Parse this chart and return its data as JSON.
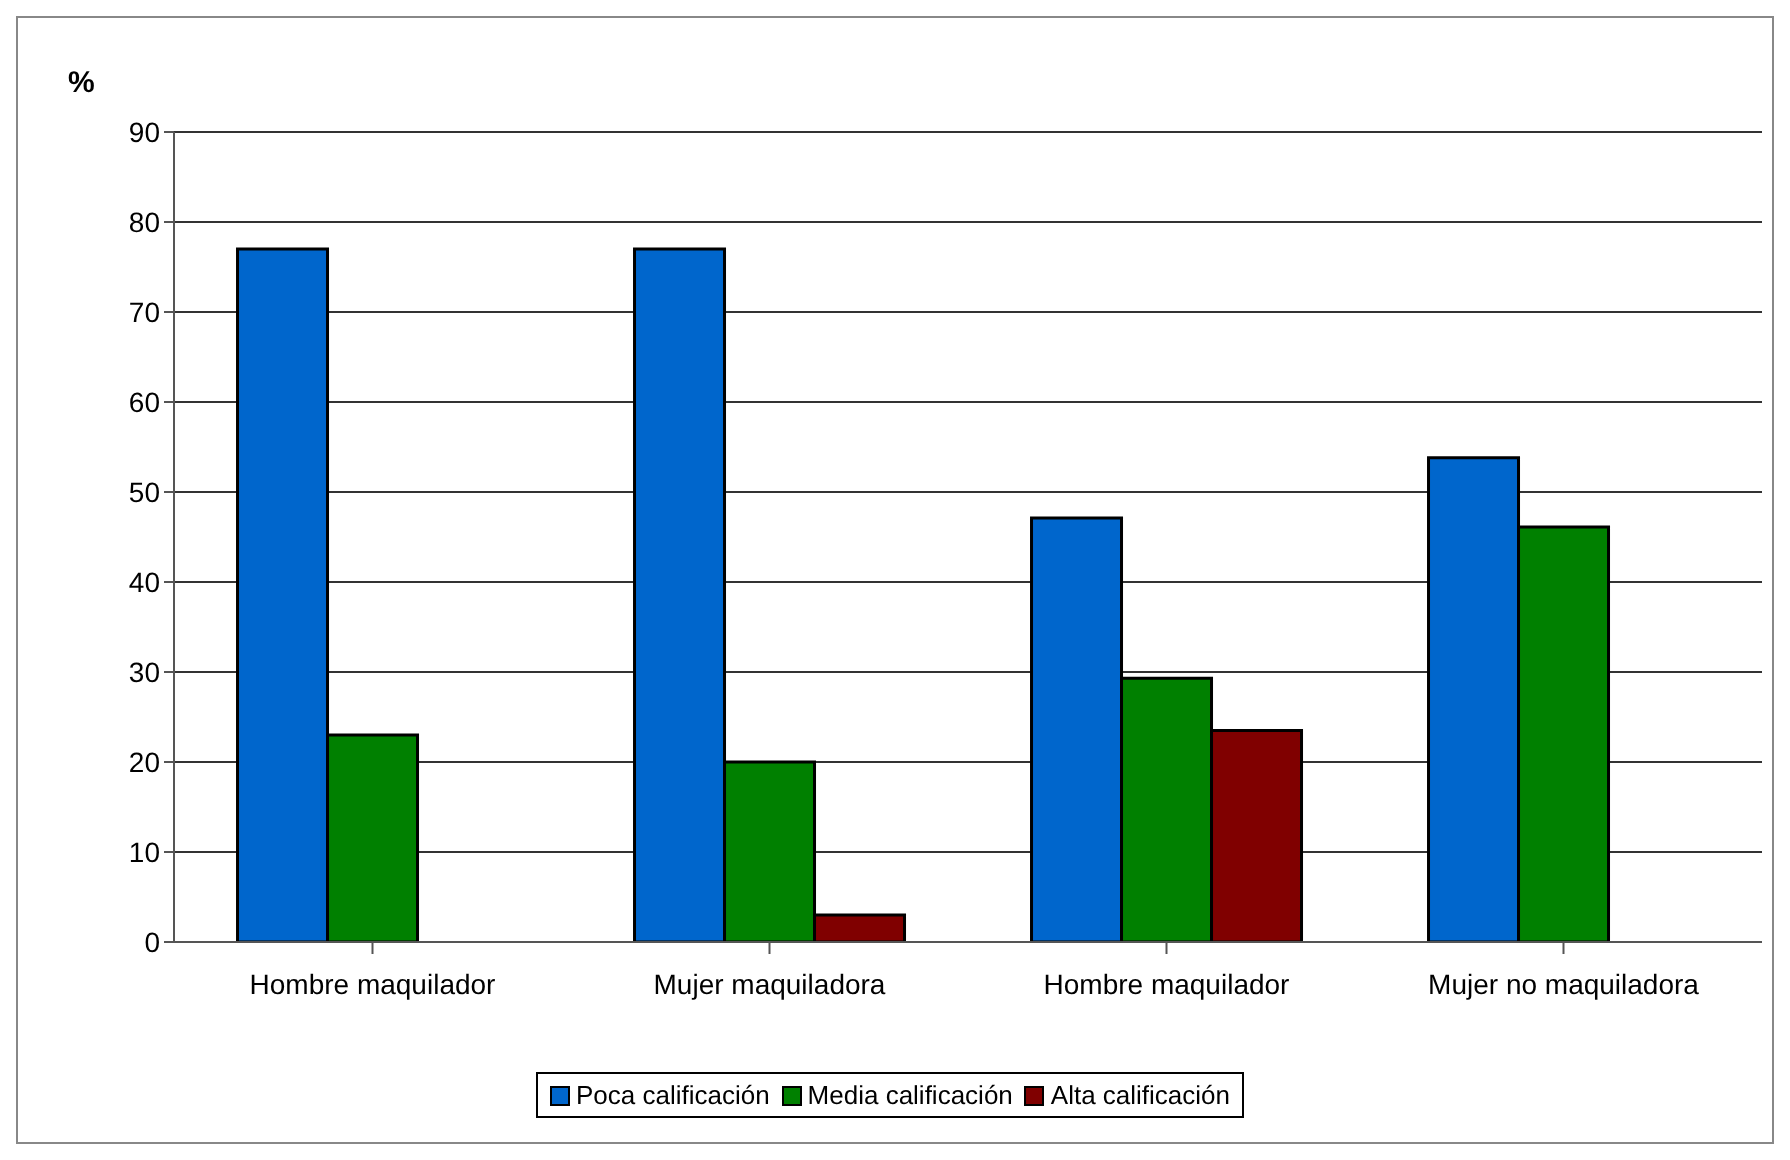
{
  "chart_data": {
    "type": "bar",
    "ylabel": "%",
    "categories": [
      "Hombre maquilador",
      "Mujer maquiladora",
      "Hombre maquilador",
      "Mujer no maquiladora"
    ],
    "series": [
      {
        "name": "Poca calificación",
        "color": "#0066cc",
        "values": [
          77,
          77,
          47.1,
          53.8
        ]
      },
      {
        "name": "Media calificación",
        "color": "#008000",
        "values": [
          23,
          20,
          29.3,
          46.1
        ]
      },
      {
        "name": "Alta calificación",
        "color": "#800000",
        "values": [
          null,
          3,
          23.5,
          null
        ]
      }
    ],
    "ylim": [
      0,
      90
    ],
    "yticks": [
      0,
      10,
      20,
      30,
      40,
      50,
      60,
      70,
      80,
      90
    ],
    "grid": "y",
    "legend": "bottom"
  }
}
